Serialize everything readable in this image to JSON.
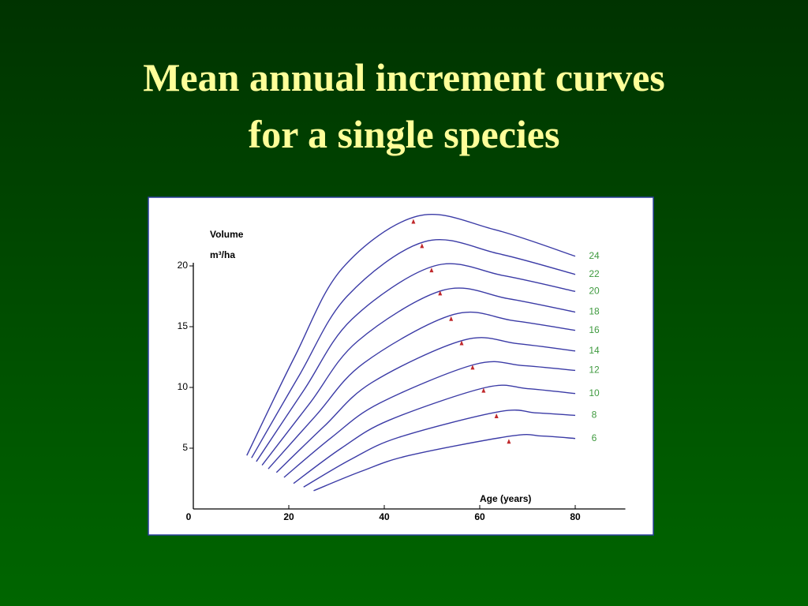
{
  "chart_data": {
    "type": "line",
    "title": [
      "Mean annual increment curves",
      "for a single species"
    ],
    "y_label": [
      "Volume",
      "m³/ha"
    ],
    "x_label": "Age  (years)",
    "xlim": [
      0,
      90
    ],
    "ylim": [
      0,
      20
    ],
    "xticks": [
      0,
      20,
      40,
      60,
      80
    ],
    "yticks": [
      5,
      10,
      15,
      20
    ],
    "line_color": "#3b3ba6",
    "label_color": "#3f9a3f",
    "marker_color": "#c0282b",
    "series": [
      {
        "name": "24",
        "x": [
          11.2,
          21.2,
          31.2,
          47,
          63,
          80
        ],
        "values": [
          4.4,
          12.5,
          19.8,
          24.1,
          23.0,
          20.8
        ]
      },
      {
        "name": "22",
        "x": [
          12.2,
          22.2,
          32.2,
          48.5,
          64,
          80
        ],
        "values": [
          4.2,
          11,
          17.5,
          22,
          21,
          19.3
        ]
      },
      {
        "name": "20",
        "x": [
          13.2,
          23.2,
          33.2,
          50.5,
          65,
          80
        ],
        "values": [
          3.9,
          9.8,
          15.6,
          20,
          19.2,
          17.9
        ]
      },
      {
        "name": "18",
        "x": [
          14.4,
          24.4,
          34.4,
          52.3,
          66,
          80
        ],
        "values": [
          3.6,
          8.7,
          13.8,
          18,
          17.3,
          16.2
        ]
      },
      {
        "name": "16",
        "x": [
          15.7,
          25.7,
          35.7,
          54.5,
          67,
          80
        ],
        "values": [
          3.3,
          7.7,
          12,
          16,
          15.5,
          14.7
        ]
      },
      {
        "name": "14",
        "x": [
          17.4,
          27.4,
          37.4,
          56.7,
          68,
          80
        ],
        "values": [
          3.0,
          6.8,
          10.4,
          13.9,
          13.6,
          13
        ]
      },
      {
        "name": "12",
        "x": [
          19.0,
          29,
          39,
          59,
          69,
          80
        ],
        "values": [
          2.6,
          5.9,
          8.7,
          11.9,
          11.8,
          11.4
        ]
      },
      {
        "name": "10",
        "x": [
          21,
          31,
          41,
          61.3,
          70,
          80
        ],
        "values": [
          2.1,
          5,
          7.3,
          10,
          9.9,
          9.5
        ]
      },
      {
        "name": "8",
        "x": [
          23.1,
          33.1,
          43.1,
          64,
          72,
          80
        ],
        "values": [
          1.8,
          4.1,
          5.9,
          8,
          7.9,
          7.7
        ]
      },
      {
        "name": "6",
        "x": [
          25.2,
          35.2,
          45.2,
          66.5,
          73,
          80
        ],
        "values": [
          1.5,
          3.1,
          4.4,
          6,
          6,
          5.8
        ]
      }
    ],
    "peaks": {
      "x": [
        46.1,
        47.9,
        49.9,
        51.7,
        54,
        56.2,
        58.5,
        60.8,
        63.5,
        66.1
      ],
      "values": [
        23.6,
        21.6,
        19.6,
        17.7,
        15.6,
        13.6,
        11.6,
        9.7,
        7.6,
        5.5
      ]
    }
  }
}
